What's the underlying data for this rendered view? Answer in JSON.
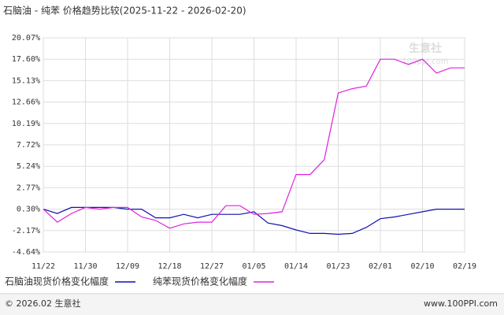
{
  "chart_data": {
    "type": "line",
    "title": "石脑油 - 纯苯 价格趋势比较(2025-11-22 - 2026-02-20)",
    "categories": [
      "11/22",
      null,
      null,
      "11/30",
      null,
      null,
      "12/09",
      null,
      null,
      "12/18",
      null,
      null,
      "12/27",
      null,
      null,
      "01/05",
      null,
      null,
      "01/14",
      null,
      null,
      "01/23",
      null,
      null,
      "02/01",
      null,
      null,
      "02/10",
      null,
      null,
      "02/19"
    ],
    "series": [
      {
        "name": "石脑油现货价格变化幅度",
        "color": "#1010b0",
        "values": [
          0.3,
          -0.2,
          0.5,
          0.5,
          0.5,
          0.5,
          0.3,
          0.3,
          -0.7,
          -0.7,
          -0.3,
          -0.7,
          -0.3,
          -0.3,
          -0.3,
          0.0,
          -1.3,
          -1.6,
          -2.1,
          -2.5,
          -2.5,
          -2.6,
          -2.5,
          -1.8,
          -0.8,
          -0.6,
          -0.3,
          0.0,
          0.3,
          0.3,
          0.3
        ]
      },
      {
        "name": "纯苯现货价格变化幅度",
        "color": "#e020e0",
        "values": [
          0.3,
          -1.2,
          -0.2,
          0.5,
          0.3,
          0.5,
          0.5,
          -0.6,
          -1.0,
          -1.9,
          -1.4,
          -1.2,
          -1.2,
          0.7,
          0.7,
          -0.3,
          -0.2,
          0.0,
          4.3,
          4.3,
          6.0,
          13.7,
          14.2,
          14.5,
          17.6,
          17.6,
          17.0,
          17.6,
          16.0,
          16.6,
          16.6
        ]
      }
    ],
    "ylim": [
      -4.64,
      20.07
    ],
    "yticks": [
      {
        "value": -4.64,
        "label": "-4.64%"
      },
      {
        "value": -2.17,
        "label": "-2.17%"
      },
      {
        "value": 0.3,
        "label": "0.30%"
      },
      {
        "value": 2.77,
        "label": "2.77%"
      },
      {
        "value": 5.24,
        "label": "5.24%"
      },
      {
        "value": 7.72,
        "label": "7.72%"
      },
      {
        "value": 10.19,
        "label": "10.19%"
      },
      {
        "value": 12.66,
        "label": "12.66%"
      },
      {
        "value": 15.13,
        "label": "15.13%"
      },
      {
        "value": 17.6,
        "label": "17.60%"
      },
      {
        "value": 20.07,
        "label": "20.07%"
      }
    ],
    "grid": true,
    "watermark": [
      "生意社",
      "100ppi.com"
    ]
  },
  "footer": {
    "left": "© 2026.02 生意社",
    "right": "www.100PPI.com"
  }
}
